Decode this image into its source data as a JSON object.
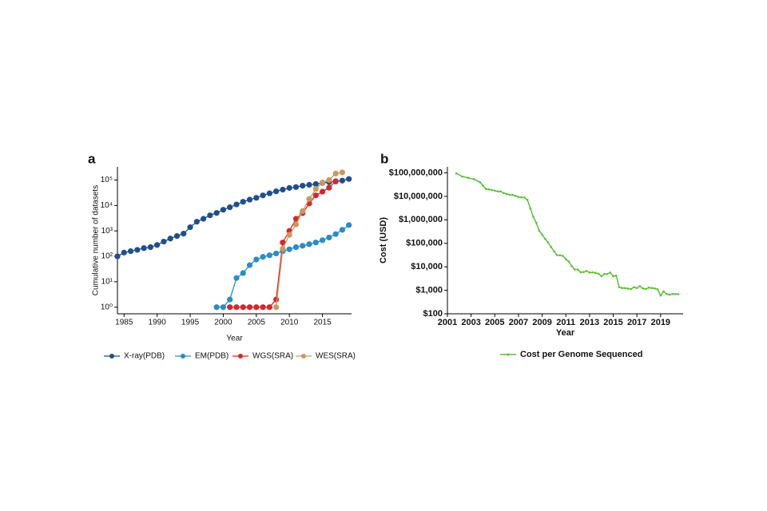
{
  "chart_data": [
    {
      "type": "line",
      "label": "a",
      "log_y": true,
      "x_label": "Year",
      "y_label": "Cumulative number of datasets",
      "x": [
        1984,
        1985,
        1986,
        1987,
        1988,
        1989,
        1990,
        1991,
        1992,
        1993,
        1994,
        1995,
        1996,
        1997,
        1998,
        1999,
        2000,
        2001,
        2002,
        2003,
        2004,
        2005,
        2006,
        2007,
        2008,
        2009,
        2010,
        2011,
        2012,
        2013,
        2014,
        2015,
        2016,
        2017,
        2018,
        2019
      ],
      "xlim": [
        1984,
        2019.4
      ],
      "xticks": [
        1985,
        1990,
        1995,
        2000,
        2005,
        2010,
        2015
      ],
      "ylim": [
        0.55,
        330000
      ],
      "yticks": [
        {
          "value": 1,
          "label": "10⁰"
        },
        {
          "value": 10,
          "label": "10¹"
        },
        {
          "value": 100,
          "label": "10²"
        },
        {
          "value": 1000,
          "label": "10³"
        },
        {
          "value": 10000,
          "label": "10⁴"
        },
        {
          "value": 100000,
          "label": "10⁵"
        }
      ],
      "series": [
        {
          "name": "X-ray(PDB)",
          "color": "#1f4e8c",
          "values": [
            100,
            140,
            160,
            180,
            210,
            230,
            280,
            380,
            500,
            630,
            780,
            1400,
            2300,
            3000,
            4100,
            5100,
            6800,
            8500,
            11000,
            14000,
            17000,
            20000,
            25000,
            30000,
            36000,
            42000,
            49000,
            53000,
            60000,
            65000,
            70000,
            77000,
            83000,
            88000,
            95000,
            110000
          ]
        },
        {
          "name": "EM(PDB)",
          "color": "#2a8cc8",
          "values": [
            null,
            null,
            null,
            null,
            null,
            null,
            null,
            null,
            null,
            null,
            null,
            null,
            null,
            null,
            null,
            1,
            1,
            2,
            14,
            22,
            45,
            75,
            95,
            110,
            130,
            160,
            190,
            230,
            260,
            300,
            350,
            430,
            550,
            750,
            1100,
            1700
          ]
        },
        {
          "name": "WGS(SRA)",
          "color": "#d7262c",
          "values": [
            null,
            null,
            null,
            null,
            null,
            null,
            null,
            null,
            null,
            null,
            null,
            null,
            null,
            null,
            null,
            null,
            null,
            1,
            1,
            1,
            1,
            1,
            1,
            1,
            2,
            350,
            1000,
            3000,
            5000,
            12000,
            25000,
            35000,
            50000,
            90000,
            null,
            null
          ]
        },
        {
          "name": "WES(SRA)",
          "color": "#c9995f",
          "values": [
            null,
            null,
            null,
            null,
            null,
            null,
            null,
            null,
            null,
            null,
            null,
            null,
            null,
            null,
            null,
            null,
            null,
            null,
            null,
            null,
            null,
            null,
            null,
            null,
            1,
            200,
            700,
            1800,
            6000,
            18000,
            45000,
            80000,
            100000,
            180000,
            200000,
            null
          ]
        }
      ]
    },
    {
      "type": "line",
      "label": "b",
      "log_y": true,
      "x_label": "Year",
      "y_label": "Cost (USD)",
      "x": [
        2001.75,
        2002.25,
        2002.75,
        2003.25,
        2003.75,
        2004.0,
        2004.25,
        2004.5,
        2004.75,
        2005.0,
        2005.25,
        2005.5,
        2005.75,
        2006.0,
        2006.25,
        2006.5,
        2006.75,
        2007.0,
        2007.25,
        2007.5,
        2007.75,
        2008.0,
        2008.25,
        2008.5,
        2008.75,
        2009.0,
        2009.25,
        2009.5,
        2009.75,
        2010.0,
        2010.25,
        2010.5,
        2010.75,
        2011.0,
        2011.25,
        2011.5,
        2011.75,
        2012.0,
        2012.25,
        2012.5,
        2012.75,
        2013.0,
        2013.25,
        2013.5,
        2013.75,
        2014.0,
        2014.25,
        2014.5,
        2014.75,
        2015.0,
        2015.25,
        2015.5,
        2015.75,
        2016.0,
        2016.25,
        2016.5,
        2016.75,
        2017.0,
        2017.25,
        2017.5,
        2017.75,
        2018.0,
        2018.25,
        2018.5,
        2018.75,
        2019.0,
        2019.25,
        2019.5,
        2019.75,
        2020.0,
        2020.25,
        2020.5
      ],
      "xlim": [
        2001,
        2020.9
      ],
      "xticks": [
        2001,
        2003,
        2005,
        2007,
        2009,
        2011,
        2013,
        2015,
        2017,
        2019
      ],
      "ylim": [
        100,
        180000000
      ],
      "yticks": [
        {
          "value": 100,
          "label": "$100"
        },
        {
          "value": 1000,
          "label": "$1,000"
        },
        {
          "value": 10000,
          "label": "$10,000"
        },
        {
          "value": 100000,
          "label": "$100,000"
        },
        {
          "value": 1000000,
          "label": "$1,000,000"
        },
        {
          "value": 10000000,
          "label": "$10,000,000"
        },
        {
          "value": 100000000,
          "label": "$100,000,000"
        }
      ],
      "series": [
        {
          "name": "Cost per Genome Sequenced",
          "color": "#5cbf3a",
          "values": [
            95263072,
            70175437,
            61448422,
            53751684,
            40153296,
            28780376,
            20442576,
            19934346,
            18519312,
            17534970,
            16159699,
            16180224,
            13801124,
            12585659,
            11732535,
            11455315,
            10474556,
            9408739,
            9047003,
            8927342,
            7147571,
            3063820,
            1352982,
            752080,
            342502,
            232735,
            154714,
            108065,
            70333,
            46774,
            31512,
            31125,
            29092,
            20963,
            16712,
            10497,
            7743,
            7666,
            5901,
            5985,
            6618,
            5671,
            5826,
            5550,
            5096,
            4008,
            4920,
            4905,
            5731,
            3970,
            4211,
            1363,
            1245,
            1246,
            1182,
            1121,
            1363,
            1245,
            1500,
            1200,
            1121,
            1300,
            1250,
            1200,
            1100,
            600,
            900,
            700,
            650,
            700,
            690,
            680
          ]
        }
      ]
    }
  ]
}
